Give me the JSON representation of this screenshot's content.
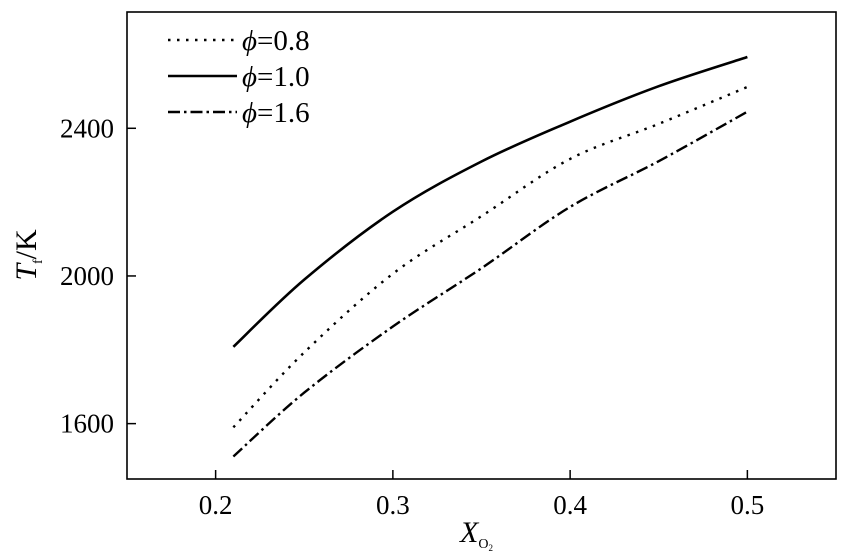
{
  "chart_data": {
    "type": "line",
    "xlabel": {
      "main": "X",
      "sub": "O",
      "subsub": "2"
    },
    "ylabel": {
      "main": "T",
      "sub": "f",
      "rest": "/K"
    },
    "xlim": [
      0.15,
      0.55
    ],
    "ylim": [
      1450,
      2715
    ],
    "xticks": [
      0.2,
      0.3,
      0.4,
      0.5
    ],
    "xtick_labels": [
      "0.2",
      "0.3",
      "0.4",
      "0.5"
    ],
    "yticks": [
      1600,
      2000,
      2400
    ],
    "ytick_labels": [
      "1600",
      "2000",
      "2400"
    ],
    "grid": false,
    "legend_position": "top-left",
    "series": [
      {
        "name": "=0.8",
        "symbol": "ϕ",
        "style": "dotted",
        "x": [
          0.21,
          0.25,
          0.3,
          0.35,
          0.4,
          0.45,
          0.5
        ],
        "y": [
          1590,
          1793,
          2006,
          2162,
          2317,
          2412,
          2512
        ]
      },
      {
        "name": "=1.0",
        "symbol": "ϕ",
        "style": "solid",
        "x": [
          0.21,
          0.25,
          0.3,
          0.35,
          0.4,
          0.45,
          0.5
        ],
        "y": [
          1808,
          1990,
          2174,
          2310,
          2418,
          2514,
          2593
        ]
      },
      {
        "name": "=1.6",
        "symbol": "ϕ",
        "style": "dashdot",
        "x": [
          0.21,
          0.25,
          0.3,
          0.35,
          0.4,
          0.45,
          0.5
        ],
        "y": [
          1511,
          1684,
          1863,
          2021,
          2187,
          2311,
          2445
        ]
      }
    ]
  }
}
